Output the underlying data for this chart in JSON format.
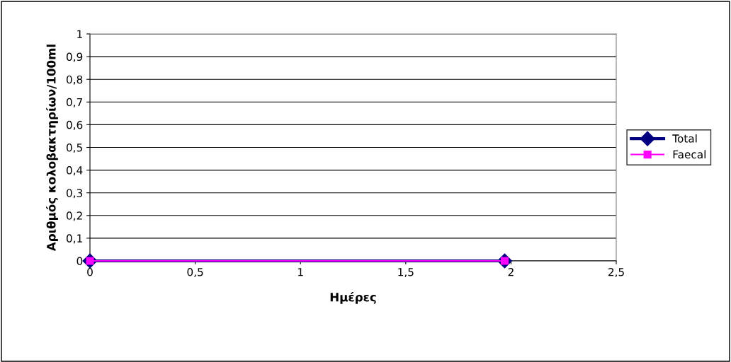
{
  "chart_data": {
    "type": "line",
    "xlabel": "Ημέρες",
    "ylabel": "Αριθμός κολοβακτηρίων/100ml",
    "x": [
      0,
      1.97
    ],
    "series": [
      {
        "name": "Total",
        "color": "#000080",
        "values": [
          0,
          0
        ],
        "marker": "diamond"
      },
      {
        "name": "Faecal",
        "color": "#ff00ff",
        "values": [
          0,
          0
        ],
        "marker": "square"
      }
    ],
    "xlim": [
      0,
      2.5
    ],
    "xticks": [
      0,
      {
        "value": 0.5,
        "label": "0,5"
      },
      1,
      {
        "value": 1.5,
        "label": "1,5"
      },
      2,
      {
        "value": 2.5,
        "label": "2,5"
      }
    ],
    "ylim": [
      0,
      1
    ],
    "yticks": [
      0,
      {
        "value": 0.1,
        "label": "0,1"
      },
      {
        "value": 0.2,
        "label": "0,2"
      },
      {
        "value": 0.3,
        "label": "0,3"
      },
      {
        "value": 0.4,
        "label": "0,4"
      },
      {
        "value": 0.5,
        "label": "0,5"
      },
      {
        "value": 0.6,
        "label": "0,6"
      },
      {
        "value": 0.7,
        "label": "0,7"
      },
      {
        "value": 0.8,
        "label": "0,8"
      },
      {
        "value": 0.9,
        "label": "0,9"
      },
      1
    ],
    "grid": "y",
    "legend": "right",
    "line_style": "solid"
  }
}
